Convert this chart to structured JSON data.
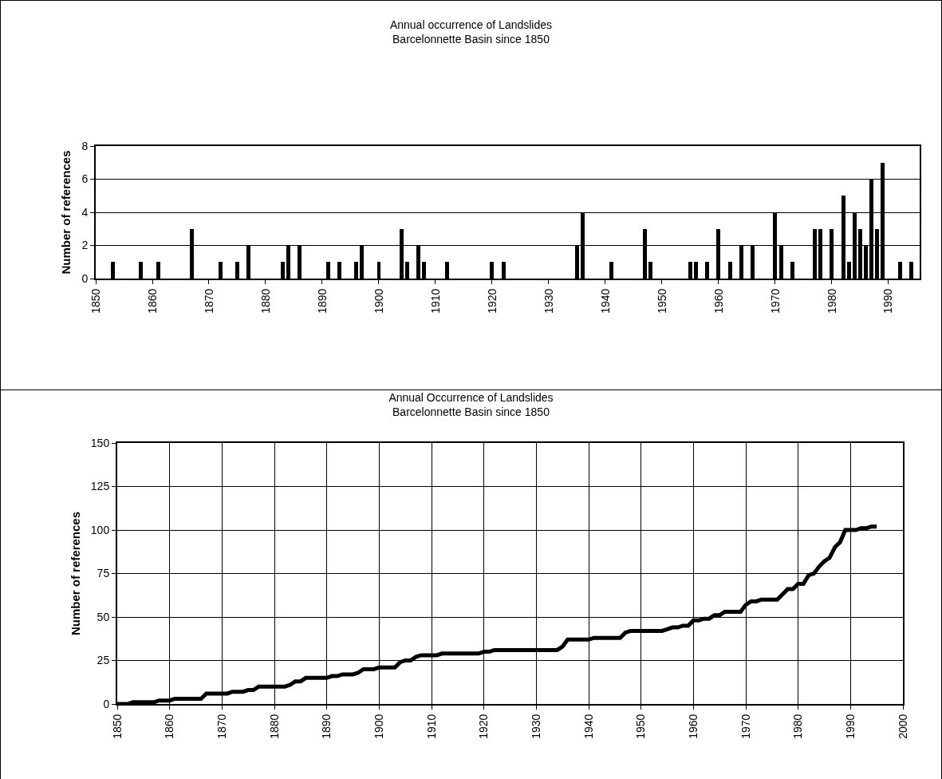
{
  "chart_data": [
    {
      "type": "bar",
      "title": "Annual occurrence of Landslides",
      "subtitle": "Barcelonnette Basin since 1850",
      "ylabel": "Number of references",
      "color": "#000000",
      "x": [
        1853,
        1858,
        1861,
        1867,
        1872,
        1875,
        1877,
        1883,
        1884,
        1886,
        1891,
        1893,
        1896,
        1897,
        1900,
        1904,
        1905,
        1907,
        1908,
        1912,
        1920,
        1922,
        1935,
        1936,
        1941,
        1947,
        1948,
        1955,
        1956,
        1958,
        1960,
        1962,
        1964,
        1966,
        1970,
        1971,
        1973,
        1977,
        1978,
        1980,
        1982,
        1983,
        1984,
        1985,
        1986,
        1987,
        1988,
        1989,
        1992,
        1994
      ],
      "values": [
        1,
        1,
        1,
        3,
        1,
        1,
        2,
        1,
        2,
        2,
        1,
        1,
        1,
        2,
        1,
        3,
        1,
        2,
        1,
        1,
        1,
        1,
        2,
        4,
        1,
        3,
        1,
        1,
        1,
        1,
        3,
        1,
        2,
        2,
        4,
        2,
        1,
        3,
        3,
        3,
        5,
        1,
        4,
        3,
        2,
        6,
        3,
        7,
        1,
        1
      ],
      "xlim": [
        1850,
        1995.5
      ],
      "xticks": [
        1850,
        1860,
        1870,
        1880,
        1890,
        1900,
        1910,
        1920,
        1930,
        1940,
        1950,
        1960,
        1970,
        1980,
        1990
      ],
      "ylim": [
        0,
        8
      ],
      "yticks": [
        0,
        2,
        4,
        6,
        8
      ],
      "grid": "y"
    },
    {
      "type": "line",
      "title": "Annual Occurrence of Landslides",
      "subtitle": "Barcelonnette Basin since 1850",
      "ylabel": "Number of references",
      "color": "#000000",
      "x": [
        1850,
        1852,
        1853,
        1857,
        1858,
        1860,
        1861,
        1866,
        1867,
        1871,
        1872,
        1874,
        1875,
        1876,
        1877,
        1882,
        1883,
        1884,
        1885,
        1886,
        1890,
        1891,
        1892,
        1893,
        1895,
        1896,
        1897,
        1899,
        1900,
        1903,
        1904,
        1905,
        1906,
        1907,
        1908,
        1911,
        1912,
        1919,
        1920,
        1921,
        1922,
        1934,
        1935,
        1936,
        1940,
        1941,
        1946,
        1947,
        1948,
        1954,
        1955,
        1956,
        1957,
        1958,
        1959,
        1960,
        1961,
        1962,
        1963,
        1964,
        1965,
        1966,
        1969,
        1970,
        1971,
        1972,
        1973,
        1976,
        1977,
        1978,
        1979,
        1980,
        1981,
        1982,
        1983,
        1984,
        1985,
        1986,
        1987,
        1988,
        1989,
        1991,
        1992,
        1993,
        1994,
        1995
      ],
      "values": [
        0,
        0,
        1,
        1,
        2,
        2,
        3,
        3,
        6,
        6,
        7,
        7,
        8,
        8,
        10,
        10,
        11,
        13,
        13,
        15,
        15,
        16,
        16,
        17,
        17,
        18,
        20,
        20,
        21,
        21,
        24,
        25,
        25,
        27,
        28,
        28,
        29,
        29,
        30,
        30,
        31,
        31,
        33,
        37,
        37,
        38,
        38,
        41,
        42,
        42,
        43,
        44,
        44,
        45,
        45,
        48,
        48,
        49,
        49,
        51,
        51,
        53,
        53,
        57,
        59,
        59,
        60,
        60,
        63,
        66,
        66,
        69,
        69,
        74,
        75,
        79,
        82,
        84,
        90,
        93,
        100,
        100,
        101,
        101,
        102,
        102
      ],
      "xlim": [
        1850,
        2000
      ],
      "xticks": [
        1850,
        1860,
        1870,
        1880,
        1890,
        1900,
        1910,
        1920,
        1930,
        1940,
        1950,
        1960,
        1970,
        1980,
        1990,
        2000
      ],
      "ylim": [
        0,
        150
      ],
      "yticks": [
        0,
        25,
        50,
        75,
        100,
        125,
        150
      ],
      "grid": true
    }
  ]
}
